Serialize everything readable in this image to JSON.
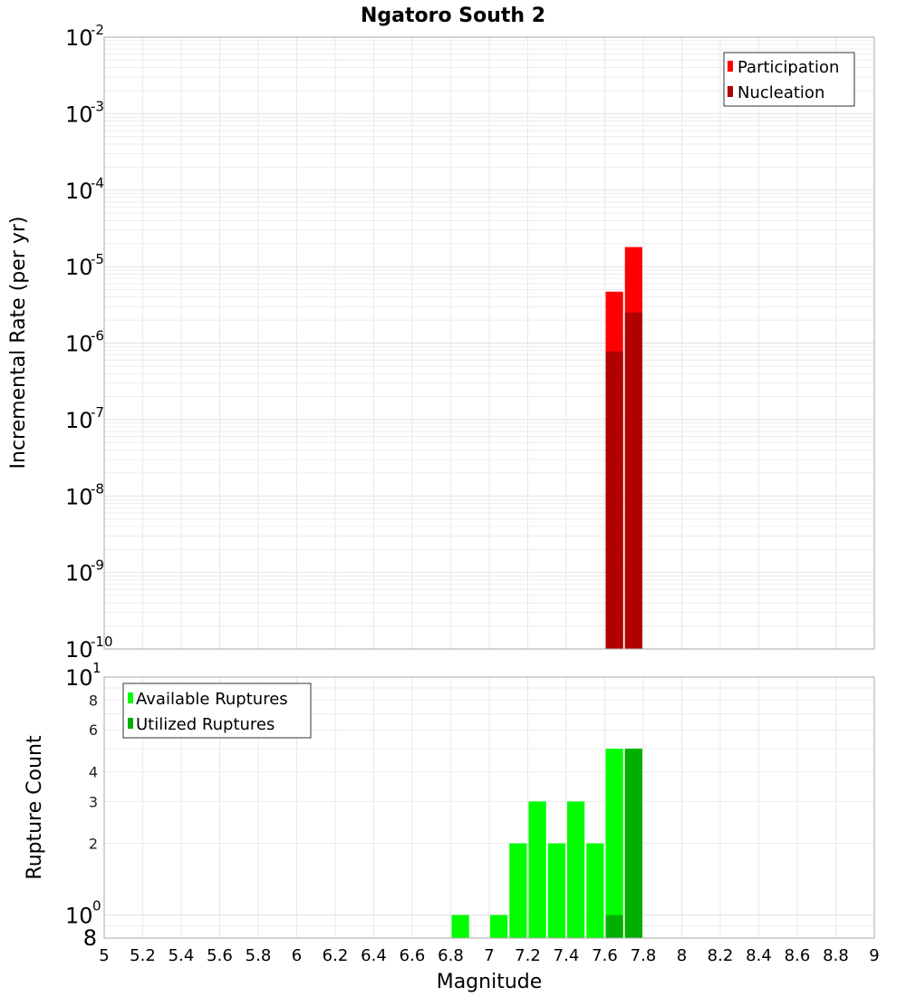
{
  "title": "Ngatoro South 2",
  "chart_data": [
    {
      "type": "bar",
      "title": "Ngatoro South 2",
      "xlabel": "Magnitude",
      "ylabel": "Incremental Rate (per yr)",
      "yscale": "log",
      "ylim": [
        1e-10,
        0.01
      ],
      "xlim": [
        5,
        9
      ],
      "grid": true,
      "legend_position": "top-right",
      "y_tick_labels": [
        "10^-2",
        "10^-3",
        "10^-4",
        "10^-5",
        "10^-6",
        "10^-7",
        "10^-8",
        "10^-9",
        "10^-10"
      ],
      "bin_width": 0.1,
      "series": [
        {
          "name": "Participation",
          "color": "#ff0000",
          "x": [
            7.65,
            7.75
          ],
          "values": [
            4.7e-06,
            1.8e-05
          ]
        },
        {
          "name": "Nucleation",
          "color": "#b20000",
          "x": [
            7.65,
            7.75
          ],
          "values": [
            7.8e-07,
            2.5e-06
          ]
        }
      ]
    },
    {
      "type": "bar",
      "title": "",
      "xlabel": "Magnitude",
      "ylabel": "Rupture Count",
      "yscale": "log",
      "ylim": [
        0.8,
        10
      ],
      "xlim": [
        5,
        9
      ],
      "grid": true,
      "legend_position": "top-left",
      "y_tick_labels": [
        "10^1",
        "8",
        "6",
        "4",
        "3",
        "2",
        "10^0",
        "8"
      ],
      "bin_width": 0.1,
      "series": [
        {
          "name": "Available Ruptures",
          "color": "#00ff00",
          "x": [
            6.85,
            7.05,
            7.15,
            7.25,
            7.35,
            7.45,
            7.55,
            7.65,
            7.75
          ],
          "values": [
            1,
            1,
            2,
            3,
            2,
            3,
            2,
            5,
            5
          ]
        },
        {
          "name": "Utilized Ruptures",
          "color": "#00b000",
          "x": [
            7.65,
            7.75
          ],
          "values": [
            1,
            5
          ]
        }
      ]
    }
  ],
  "x_ticks": [
    "5",
    "5.2",
    "5.4",
    "5.6",
    "5.8",
    "6",
    "6.2",
    "6.4",
    "6.6",
    "6.8",
    "7",
    "7.2",
    "7.4",
    "7.6",
    "7.8",
    "8",
    "8.2",
    "8.4",
    "8.6",
    "8.8",
    "9"
  ]
}
